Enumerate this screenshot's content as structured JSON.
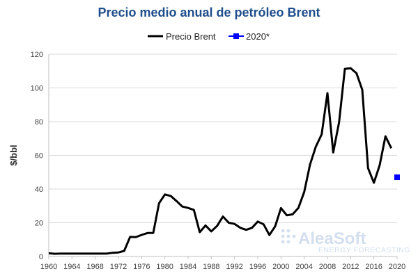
{
  "chart_data": {
    "type": "line",
    "title": "Precio medio anual de petróleo Brent",
    "xlabel": "",
    "ylabel": "$/bbl",
    "xlim": [
      1960,
      2020
    ],
    "ylim": [
      0,
      120
    ],
    "x_ticks": [
      "1960",
      "1964",
      "1968",
      "1972",
      "1976",
      "1980",
      "1984",
      "1988",
      "1992",
      "1996",
      "2000",
      "2004",
      "2008",
      "2012",
      "2016",
      "2020"
    ],
    "y_ticks": [
      "0",
      "20",
      "40",
      "60",
      "80",
      "100",
      "120"
    ],
    "grid": "horizontal",
    "legend_position": "top",
    "series": [
      {
        "name": "Precio Brent",
        "color": "#000000",
        "x": [
          1960,
          1961,
          1962,
          1963,
          1964,
          1965,
          1966,
          1967,
          1968,
          1969,
          1970,
          1971,
          1972,
          1973,
          1974,
          1975,
          1976,
          1977,
          1978,
          1979,
          1980,
          1981,
          1982,
          1983,
          1984,
          1985,
          1986,
          1987,
          1988,
          1989,
          1990,
          1991,
          1992,
          1993,
          1994,
          1995,
          1996,
          1997,
          1998,
          1999,
          2000,
          2001,
          2002,
          2003,
          2004,
          2005,
          2006,
          2007,
          2008,
          2009,
          2010,
          2011,
          2012,
          2013,
          2014,
          2015,
          2016,
          2017,
          2018,
          2019
        ],
        "values": [
          1.9,
          1.6,
          1.7,
          1.7,
          1.7,
          1.7,
          1.7,
          1.7,
          1.7,
          1.7,
          1.7,
          2.2,
          2.4,
          3.3,
          11.6,
          11.5,
          12.8,
          13.9,
          14.0,
          31.6,
          36.8,
          35.9,
          32.9,
          29.6,
          28.8,
          27.6,
          14.4,
          18.4,
          14.9,
          18.2,
          23.7,
          20.0,
          19.3,
          17.0,
          15.8,
          17.0,
          20.7,
          19.1,
          12.7,
          17.9,
          28.7,
          24.4,
          25.0,
          28.8,
          38.3,
          54.5,
          65.1,
          72.4,
          96.9,
          61.7,
          79.6,
          111.3,
          111.7,
          108.7,
          98.9,
          52.4,
          43.7,
          54.2,
          71.3,
          64.2
        ]
      },
      {
        "name": "2020*",
        "color": "#0000ff",
        "x": [
          2020
        ],
        "values": [
          47
        ]
      }
    ]
  },
  "watermark": {
    "brand": "AleaSoft",
    "tagline": "ENERGY FORECASTING"
  }
}
